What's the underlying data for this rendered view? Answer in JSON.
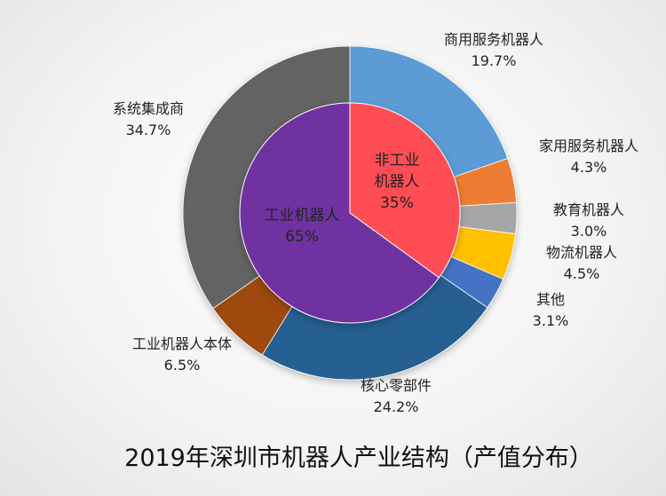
{
  "chart_data": {
    "type": "pie",
    "title": "2019年深圳市机器人产业结构（产值分布）",
    "inner": [
      {
        "name": "非工业机器人",
        "value": 35,
        "label": "35%",
        "color": "#ff4d55"
      },
      {
        "name": "工业机器人",
        "value": 65,
        "label": "65%",
        "color": "#7030a0"
      }
    ],
    "outer": [
      {
        "name": "商用服务机器人",
        "value": 19.7,
        "label": "19.7%",
        "color": "#5b9bd5"
      },
      {
        "name": "家用服务机器人",
        "value": 4.3,
        "label": "4.3%",
        "color": "#ed7d31"
      },
      {
        "name": "教育机器人",
        "value": 3.0,
        "label": "3.0%",
        "color": "#a5a5a5"
      },
      {
        "name": "物流机器人",
        "value": 4.5,
        "label": "4.5%",
        "color": "#ffc000"
      },
      {
        "name": "其他",
        "value": 3.1,
        "label": "3.1%",
        "color": "#4472c4"
      },
      {
        "name": "核心零部件",
        "value": 24.2,
        "label": "24.2%",
        "color": "#255e91"
      },
      {
        "name": "工业机器人本体",
        "value": 6.5,
        "label": "6.5%",
        "color": "#9e480e"
      },
      {
        "name": "系统集成商",
        "value": 34.7,
        "label": "34.7%",
        "color": "#636363"
      }
    ]
  }
}
